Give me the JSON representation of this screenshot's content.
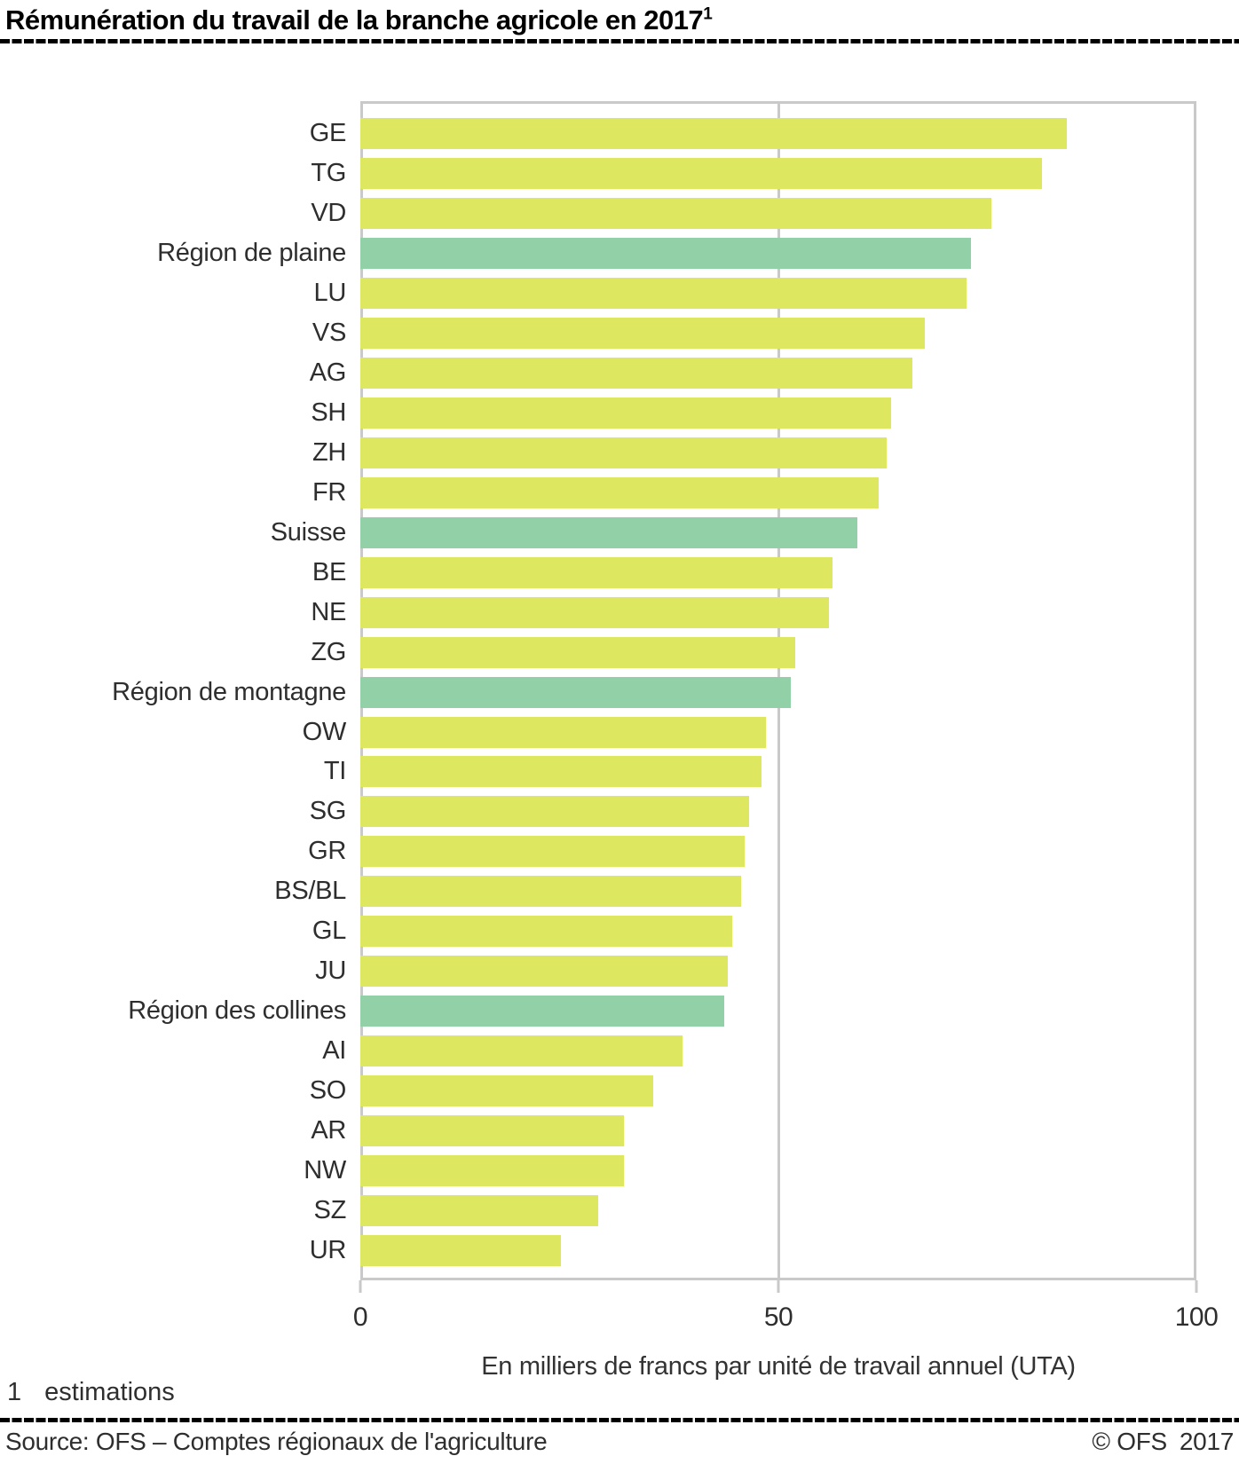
{
  "title": {
    "text": "Rémunération du travail de la branche agricole en 2017",
    "footnote_marker": "1"
  },
  "chart_data": {
    "type": "bar",
    "orientation": "horizontal",
    "title": "Rémunération du travail de la branche agricole en 2017 (estimations)",
    "xlabel": "En milliers de francs par unité de travail annuel (UTA)",
    "xlim": [
      0,
      100
    ],
    "xticks": [
      0,
      50,
      100
    ],
    "xtick_labels": {
      "t0": "0",
      "t50": "50",
      "t100": "100"
    },
    "grid": "vertical gridline at 50, grey frame around plot",
    "legend": "none",
    "bar_color": "#dde75f",
    "highlight_color": "#92d1a7",
    "highlight_meaning": "regions / national aggregate (green), cantons (yellow-green)",
    "rows": [
      {
        "label": "GE",
        "value": 84.5,
        "highlighted": false
      },
      {
        "label": "TG",
        "value": 81.5,
        "highlighted": false
      },
      {
        "label": "VD",
        "value": 75.5,
        "highlighted": false
      },
      {
        "label": "Région de plaine",
        "value": 73,
        "highlighted": true
      },
      {
        "label": "LU",
        "value": 72.5,
        "highlighted": false
      },
      {
        "label": "VS",
        "value": 67.5,
        "highlighted": false
      },
      {
        "label": "AG",
        "value": 66,
        "highlighted": false
      },
      {
        "label": "SH",
        "value": 63.5,
        "highlighted": false
      },
      {
        "label": "ZH",
        "value": 63,
        "highlighted": false
      },
      {
        "label": "FR",
        "value": 62,
        "highlighted": false
      },
      {
        "label": "Suisse",
        "value": 59.5,
        "highlighted": true
      },
      {
        "label": "BE",
        "value": 56.5,
        "highlighted": false
      },
      {
        "label": "NE",
        "value": 56,
        "highlighted": false
      },
      {
        "label": "ZG",
        "value": 52,
        "highlighted": false
      },
      {
        "label": "Région de montagne",
        "value": 51.5,
        "highlighted": true
      },
      {
        "label": "OW",
        "value": 48.5,
        "highlighted": false
      },
      {
        "label": "TI",
        "value": 48,
        "highlighted": false
      },
      {
        "label": "SG",
        "value": 46.5,
        "highlighted": false
      },
      {
        "label": "GR",
        "value": 46,
        "highlighted": false
      },
      {
        "label": "BS/BL",
        "value": 45.5,
        "highlighted": false
      },
      {
        "label": "GL",
        "value": 44.5,
        "highlighted": false
      },
      {
        "label": "JU",
        "value": 44,
        "highlighted": false
      },
      {
        "label": "Région des collines",
        "value": 43.5,
        "highlighted": true
      },
      {
        "label": "AI",
        "value": 38.5,
        "highlighted": false
      },
      {
        "label": "SO",
        "value": 35,
        "highlighted": false
      },
      {
        "label": "AR",
        "value": 31.5,
        "highlighted": false
      },
      {
        "label": "NW",
        "value": 31.5,
        "highlighted": false
      },
      {
        "label": "SZ",
        "value": 28.5,
        "highlighted": false
      },
      {
        "label": "UR",
        "value": 24,
        "highlighted": false
      }
    ]
  },
  "footnote": {
    "marker": "1",
    "text": "estimations"
  },
  "footer": {
    "source": "Source: OFS – Comptes régionaux de l'agriculture",
    "copyright": "© OFS",
    "year": "2017"
  }
}
